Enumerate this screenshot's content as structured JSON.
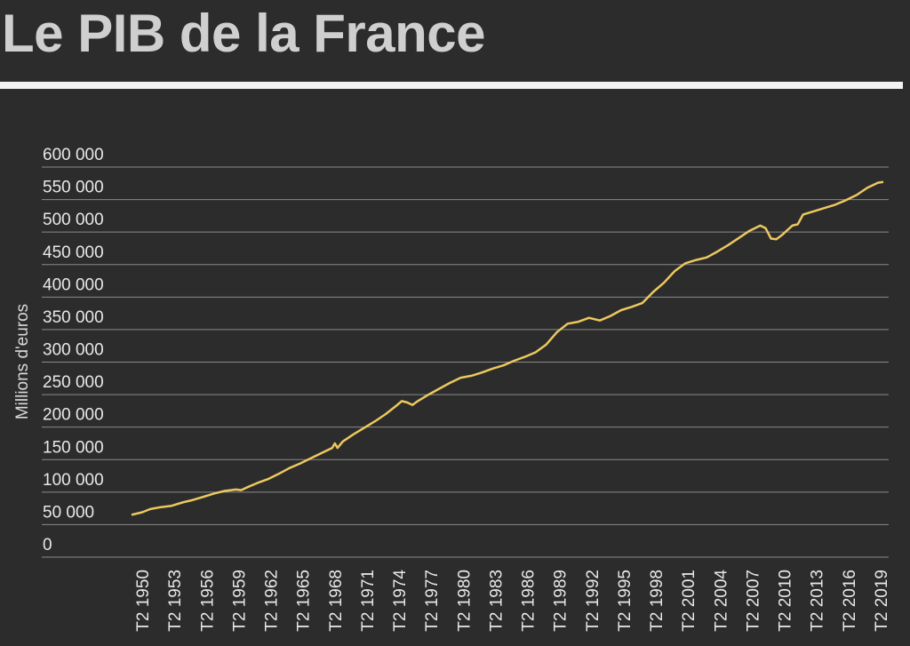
{
  "title": "Le PIB de la France",
  "colors": {
    "background": "#2c2c2c",
    "title": "#cfcfcf",
    "rule": "#f2f2f2",
    "grid": "#8a8a8a",
    "line": "#ecc85f",
    "text": "#e8e8e8"
  },
  "chart_data": {
    "type": "line",
    "title": "Le PIB de la France",
    "xlabel": "",
    "ylabel": "Millions d'euros",
    "ylim": [
      0,
      600000
    ],
    "yticks": [
      0,
      50000,
      100000,
      150000,
      200000,
      250000,
      300000,
      350000,
      400000,
      450000,
      500000,
      550000,
      600000
    ],
    "ytick_labels": [
      "0",
      "50 000",
      "100 000",
      "150 000",
      "200 000",
      "250 000",
      "300 000",
      "350 000",
      "400 000",
      "450 000",
      "500 000",
      "550 000",
      "600 000"
    ],
    "xlim": [
      1949.25,
      2019.5
    ],
    "xticks": [
      1950.25,
      1953.25,
      1956.25,
      1959.25,
      1962.25,
      1965.25,
      1968.25,
      1971.25,
      1974.25,
      1977.25,
      1980.25,
      1983.25,
      1986.25,
      1989.25,
      1992.25,
      1995.25,
      1998.25,
      2001.25,
      2004.25,
      2007.25,
      2010.25,
      2013.25,
      2016.25,
      2019.25
    ],
    "xtick_labels": [
      "T2 1950",
      "T2 1953",
      "T2 1956",
      "T2 1959",
      "T2 1962",
      "T2 1965",
      "T2 1968",
      "T2 1971",
      "T2 1974",
      "T2 1977",
      "T2 1980",
      "T2 1983",
      "T2 1986",
      "T2 1989",
      "T2 1992",
      "T2 1995",
      "T2 1998",
      "T2 2001",
      "T2 2004",
      "T2 2007",
      "T2 2010",
      "T2 2013",
      "T2 2016",
      "T2 2019"
    ],
    "grid": true,
    "series": [
      {
        "x": [
          1949.25,
          1950.25,
          1951.0,
          1952.0,
          1953.0,
          1954.0,
          1955.0,
          1956.0,
          1957.0,
          1958.0,
          1959.0,
          1959.5,
          1960.0,
          1961.0,
          1962.0,
          1963.0,
          1964.0,
          1965.0,
          1966.0,
          1967.0,
          1968.0,
          1968.25,
          1968.5,
          1969.0,
          1970.0,
          1971.0,
          1972.0,
          1973.0,
          1974.0,
          1974.5,
          1975.0,
          1975.5,
          1976.0,
          1977.0,
          1978.0,
          1979.0,
          1980.0,
          1981.0,
          1982.0,
          1983.0,
          1984.0,
          1985.0,
          1986.0,
          1987.0,
          1988.0,
          1989.0,
          1990.0,
          1991.0,
          1992.0,
          1992.5,
          1993.0,
          1994.0,
          1995.0,
          1996.0,
          1997.0,
          1998.0,
          1999.0,
          2000.0,
          2001.0,
          2002.0,
          2003.0,
          2004.0,
          2005.0,
          2006.0,
          2007.0,
          2008.0,
          2008.5,
          2009.0,
          2009.5,
          2010.0,
          2011.0,
          2011.5,
          2012.0,
          2013.0,
          2014.0,
          2015.0,
          2016.0,
          2017.0,
          2018.0,
          2019.0,
          2019.5
        ],
        "y": [
          65000,
          69000,
          74000,
          77000,
          79000,
          84000,
          88000,
          93000,
          98000,
          102000,
          104000,
          103000,
          107000,
          114000,
          120000,
          128000,
          137000,
          144000,
          152000,
          160000,
          168000,
          175000,
          168000,
          178000,
          189000,
          199000,
          209000,
          220000,
          233000,
          240000,
          238000,
          234000,
          240000,
          250000,
          259000,
          268000,
          276000,
          279000,
          284000,
          290000,
          295000,
          302000,
          308000,
          315000,
          327000,
          346000,
          359000,
          362000,
          368000,
          366000,
          364000,
          371000,
          380000,
          385000,
          391000,
          408000,
          422000,
          440000,
          452000,
          457000,
          461000,
          470000,
          480000,
          491000,
          502000,
          510000,
          506000,
          490000,
          489000,
          495000,
          510000,
          512000,
          527000,
          532000,
          537000,
          542000,
          549000,
          557000,
          568000,
          576000,
          577000
        ]
      }
    ]
  }
}
